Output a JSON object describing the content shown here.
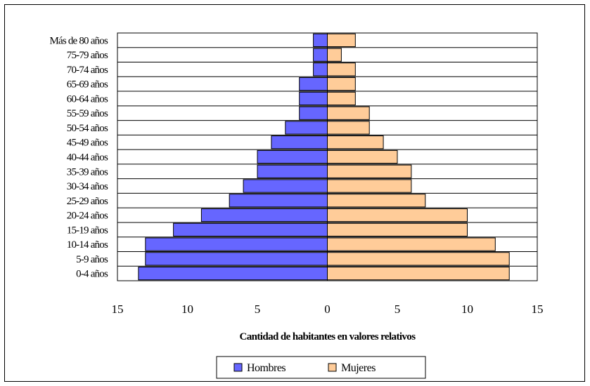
{
  "chart_data": {
    "type": "bar",
    "orientation": "horizontal",
    "title": "",
    "xlabel": "Cantidad de habitantes en valores relativos",
    "ylabel": "",
    "categories": [
      "0-4 años",
      "5-9 años",
      "10-14 años",
      "15-19 años",
      "20-24 años",
      "25-29 años",
      "30-34 años",
      "35-39 años",
      "40-44 años",
      "45-49 años",
      "50-54 años",
      "55-59 años",
      "60-64 años",
      "65-69 años",
      "70-74 años",
      "75-79 años",
      "Más de 80 años"
    ],
    "series": [
      {
        "name": "Hombres",
        "color": "#6666ff",
        "values": [
          -13.5,
          -13,
          -13,
          -11,
          -9,
          -7,
          -6,
          -5,
          -5,
          -4,
          -3,
          -2,
          -2,
          -2,
          -1,
          -1,
          -1
        ]
      },
      {
        "name": "Mujeres",
        "color": "#ffcc99",
        "values": [
          13,
          13,
          12,
          10,
          10,
          7,
          6,
          6,
          5,
          4,
          3,
          3,
          2,
          2,
          2,
          1,
          2
        ]
      }
    ],
    "xlim": [
      -15,
      15
    ],
    "xticks": [
      -15,
      -10,
      -5,
      0,
      5,
      10,
      15
    ],
    "xtick_labels": [
      "15",
      "10",
      "5",
      "0",
      "5",
      "10",
      "15"
    ],
    "grid": true,
    "legend_position": "bottom"
  }
}
